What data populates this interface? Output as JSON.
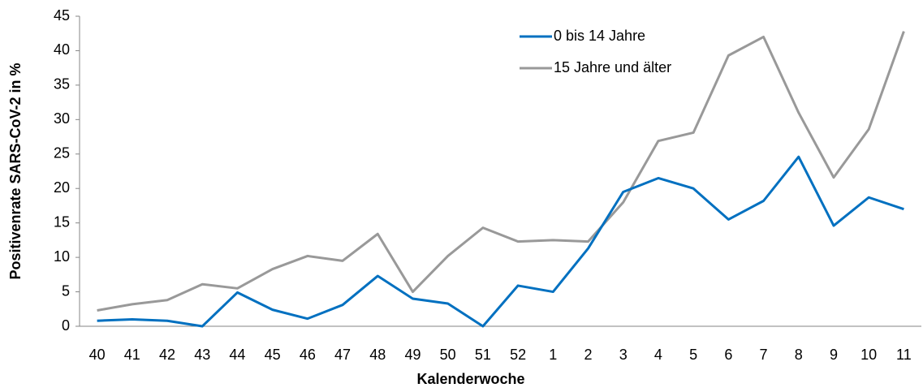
{
  "chart_data": {
    "type": "line",
    "x_label": "Kalenderwoche",
    "y_label": "Positivenrate SARS-CoV-2 in %",
    "categories": [
      "40",
      "41",
      "42",
      "43",
      "44",
      "45",
      "46",
      "47",
      "48",
      "49",
      "50",
      "51",
      "52",
      "1",
      "2",
      "3",
      "4",
      "5",
      "6",
      "7",
      "8",
      "9",
      "10",
      "11"
    ],
    "series": [
      {
        "name": "0 bis 14 Jahre",
        "color": "#0070c0",
        "values": [
          0.8,
          1.0,
          0.8,
          0,
          4.9,
          2.4,
          1.1,
          3.1,
          7.3,
          4.0,
          3.3,
          0,
          5.9,
          5.0,
          11.3,
          19.5,
          21.5,
          20.0,
          15.5,
          18.2,
          24.6,
          14.6,
          18.7,
          17.0
        ]
      },
      {
        "name": "15 Jahre und älter",
        "color": "#999999",
        "values": [
          2.3,
          3.2,
          3.8,
          6.1,
          5.5,
          8.3,
          10.2,
          9.5,
          13.4,
          5.0,
          10.2,
          14.3,
          12.3,
          12.5,
          12.3,
          18.0,
          26.9,
          28.1,
          39.3,
          42.0,
          31.0,
          21.6,
          28.6,
          42.8
        ]
      }
    ],
    "ylim": [
      0,
      45
    ],
    "yticks": [
      0,
      5,
      10,
      15,
      20,
      25,
      30,
      35,
      40,
      45
    ],
    "grid": false,
    "legend": "top-right"
  }
}
